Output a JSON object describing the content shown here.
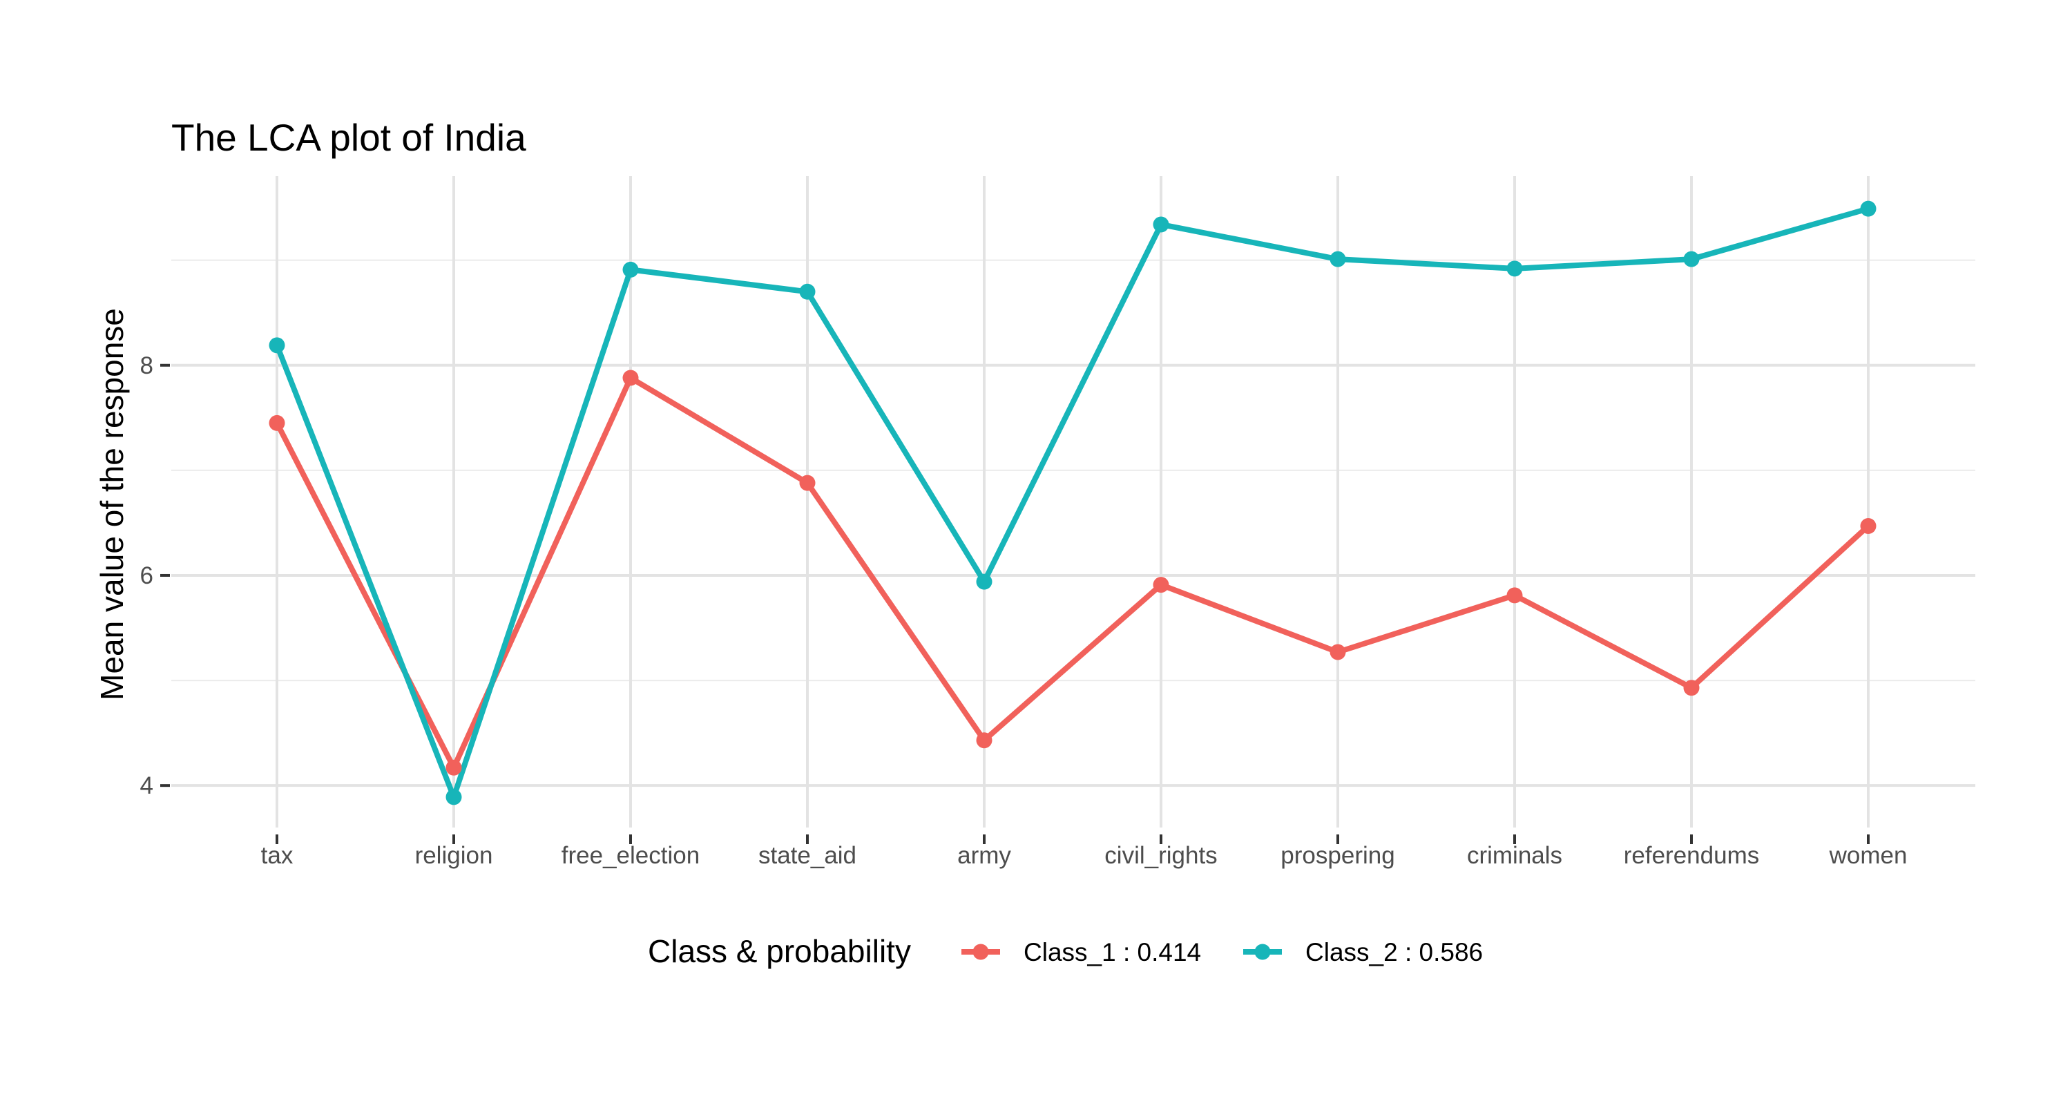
{
  "chart_data": {
    "type": "line",
    "title": "The LCA plot of India",
    "xlabel": "",
    "ylabel": "Mean value of the response",
    "categories": [
      "tax",
      "religion",
      "free_election",
      "state_aid",
      "army",
      "civil_rights",
      "prospering",
      "criminals",
      "referendums",
      "women"
    ],
    "y_ticks": [
      4,
      6,
      8
    ],
    "ylim": [
      3.6,
      9.8
    ],
    "grid": true,
    "legend": {
      "title": "Class & probability",
      "position": "bottom"
    },
    "series": [
      {
        "name": "Class_1 : 0.414",
        "color": "#F1615B",
        "values": [
          7.45,
          4.17,
          7.88,
          6.88,
          4.43,
          5.91,
          5.27,
          5.81,
          4.93,
          6.47
        ]
      },
      {
        "name": "Class_2 : 0.586",
        "color": "#17B5B9",
        "values": [
          8.19,
          3.89,
          8.91,
          8.7,
          5.94,
          9.34,
          9.01,
          8.92,
          9.01,
          9.49
        ]
      }
    ]
  }
}
